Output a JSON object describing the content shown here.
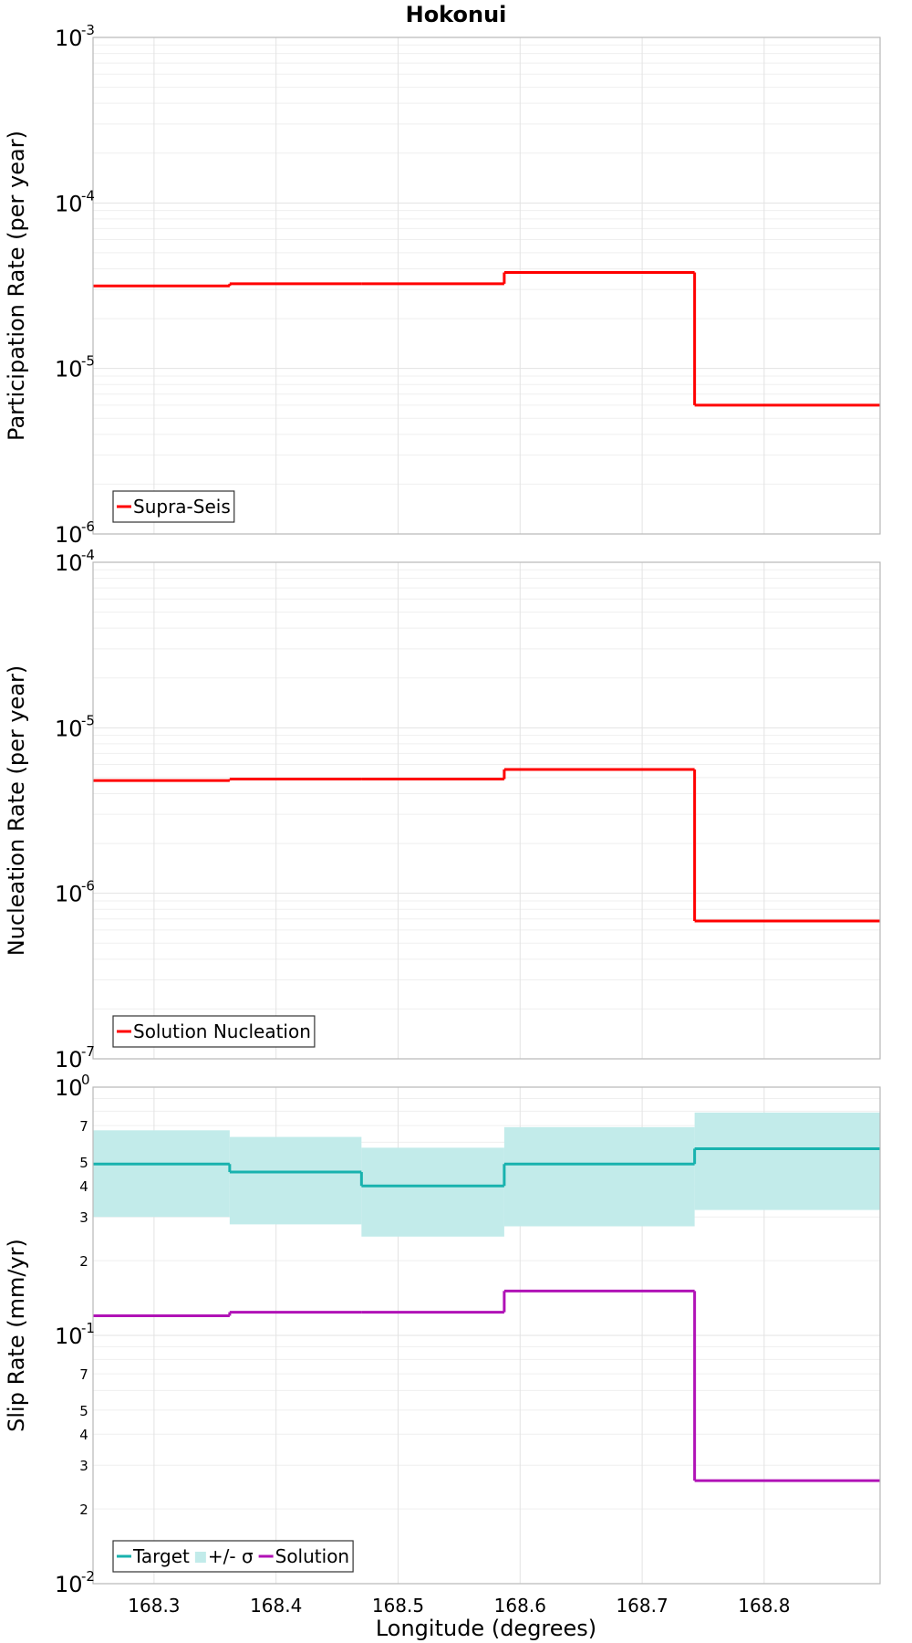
{
  "figure": {
    "title": "Hokonui",
    "xlabel": "Longitude (degrees)"
  },
  "chart_data": [
    {
      "type": "line",
      "style": "step",
      "ylabel": "Participation Rate (per year)",
      "yscale": "log",
      "ylim": [
        1e-06,
        0.001
      ],
      "xlim": [
        168.25,
        168.895
      ],
      "x_ticks": [
        168.3,
        168.4,
        168.5,
        168.6,
        168.7,
        168.8
      ],
      "grid": true,
      "legend_position": "bottom-left",
      "series": [
        {
          "name": "Supra-Seis",
          "color": "#ff0000",
          "segments": [
            {
              "x0": 168.25,
              "x1": 168.362,
              "y": 3.15e-05
            },
            {
              "x0": 168.362,
              "x1": 168.47,
              "y": 3.25e-05
            },
            {
              "x0": 168.47,
              "x1": 168.587,
              "y": 3.25e-05
            },
            {
              "x0": 168.587,
              "x1": 168.743,
              "y": 3.8e-05
            },
            {
              "x0": 168.743,
              "x1": 168.895,
              "y": 6e-06
            }
          ]
        }
      ]
    },
    {
      "type": "line",
      "style": "step",
      "ylabel": "Nucleation Rate (per year)",
      "yscale": "log",
      "ylim": [
        1e-07,
        0.0001
      ],
      "xlim": [
        168.25,
        168.895
      ],
      "x_ticks": [
        168.3,
        168.4,
        168.5,
        168.6,
        168.7,
        168.8
      ],
      "grid": true,
      "legend_position": "bottom-left",
      "series": [
        {
          "name": "Solution Nucleation",
          "color": "#ff0000",
          "segments": [
            {
              "x0": 168.25,
              "x1": 168.362,
              "y": 4.8e-06
            },
            {
              "x0": 168.362,
              "x1": 168.47,
              "y": 4.9e-06
            },
            {
              "x0": 168.47,
              "x1": 168.587,
              "y": 4.9e-06
            },
            {
              "x0": 168.587,
              "x1": 168.743,
              "y": 5.6e-06
            },
            {
              "x0": 168.743,
              "x1": 168.895,
              "y": 6.8e-07
            }
          ]
        }
      ]
    },
    {
      "type": "line",
      "style": "step",
      "ylabel": "Slip Rate (mm/yr)",
      "yscale": "log",
      "ylim": [
        0.01,
        1
      ],
      "xlim": [
        168.25,
        168.895
      ],
      "x_ticks": [
        168.3,
        168.4,
        168.5,
        168.6,
        168.7,
        168.8
      ],
      "grid": true,
      "legend_position": "bottom-left",
      "series": [
        {
          "name": "+/- σ",
          "kind": "band",
          "color": "#c2ebea",
          "segments": [
            {
              "x0": 168.25,
              "x1": 168.362,
              "low": 0.3,
              "high": 0.67
            },
            {
              "x0": 168.362,
              "x1": 168.47,
              "low": 0.28,
              "high": 0.63
            },
            {
              "x0": 168.47,
              "x1": 168.587,
              "low": 0.25,
              "high": 0.57
            },
            {
              "x0": 168.587,
              "x1": 168.743,
              "low": 0.275,
              "high": 0.69
            },
            {
              "x0": 168.743,
              "x1": 168.895,
              "low": 0.32,
              "high": 0.79
            }
          ]
        },
        {
          "name": "Target",
          "kind": "line",
          "color": "#18b2ae",
          "segments": [
            {
              "x0": 168.25,
              "x1": 168.362,
              "y": 0.49
            },
            {
              "x0": 168.362,
              "x1": 168.47,
              "y": 0.455
            },
            {
              "x0": 168.47,
              "x1": 168.587,
              "y": 0.4
            },
            {
              "x0": 168.587,
              "x1": 168.743,
              "y": 0.49
            },
            {
              "x0": 168.743,
              "x1": 168.895,
              "y": 0.565
            }
          ]
        },
        {
          "name": "Solution",
          "kind": "line",
          "color": "#b012b6",
          "segments": [
            {
              "x0": 168.25,
              "x1": 168.362,
              "y": 0.12
            },
            {
              "x0": 168.362,
              "x1": 168.47,
              "y": 0.124
            },
            {
              "x0": 168.47,
              "x1": 168.587,
              "y": 0.124
            },
            {
              "x0": 168.587,
              "x1": 168.743,
              "y": 0.151
            },
            {
              "x0": 168.743,
              "x1": 168.895,
              "y": 0.026
            }
          ]
        }
      ],
      "legend_order": [
        "Target",
        "+/- σ",
        "Solution"
      ]
    }
  ],
  "tick_labels": {
    "x": [
      "168.3",
      "168.4",
      "168.5",
      "168.6",
      "168.7",
      "168.8"
    ],
    "panel1_y": [
      "10",
      "-3",
      "10",
      "-4",
      "10",
      "-5",
      "10",
      "-6"
    ],
    "panel2_y": [
      "10",
      "-4",
      "10",
      "-5",
      "10",
      "-6",
      "10",
      "-7"
    ],
    "panel3_y_major": [
      "10",
      "0",
      "10",
      "-1",
      "10",
      "-2"
    ],
    "panel3_y_minor": [
      "7",
      "5",
      "4",
      "3",
      "2",
      "7",
      "5",
      "4",
      "3",
      "2"
    ]
  }
}
